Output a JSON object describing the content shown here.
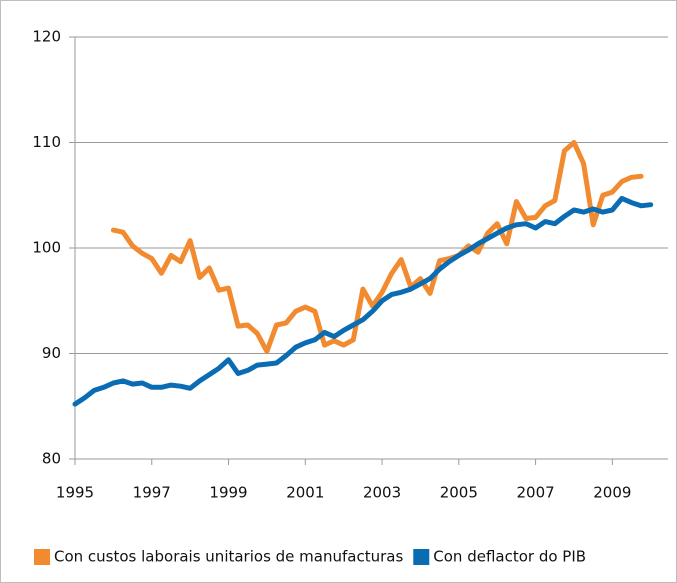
{
  "chart_data": {
    "type": "line",
    "x": [
      1995,
      1995.25,
      1995.5,
      1995.75,
      1996,
      1996.25,
      1996.5,
      1996.75,
      1997,
      1997.25,
      1997.5,
      1997.75,
      1998,
      1998.25,
      1998.5,
      1998.75,
      1999,
      1999.25,
      1999.5,
      1999.75,
      2000,
      2000.25,
      2000.5,
      2000.75,
      2001,
      2001.25,
      2001.5,
      2001.75,
      2002,
      2002.25,
      2002.5,
      2002.75,
      2003,
      2003.25,
      2003.5,
      2003.75,
      2004,
      2004.25,
      2004.5,
      2004.75,
      2005,
      2005.25,
      2005.5,
      2005.75,
      2006,
      2006.25,
      2006.5,
      2006.75,
      2007,
      2007.25,
      2007.5,
      2007.75,
      2008,
      2008.25,
      2008.5,
      2008.75,
      2009,
      2009.25,
      2009.5,
      2009.75,
      2010
    ],
    "series": [
      {
        "name": "Con custos laborais unitarios de manufacturas",
        "color": "#f28a2f",
        "values": [
          null,
          null,
          null,
          null,
          101.7,
          101.5,
          100.2,
          99.5,
          99.0,
          97.6,
          99.3,
          98.7,
          100.7,
          97.2,
          98.1,
          96.0,
          96.2,
          92.6,
          92.7,
          91.9,
          90.2,
          92.7,
          92.9,
          94.0,
          94.4,
          94.0,
          90.8,
          91.2,
          90.8,
          91.3,
          96.1,
          94.5,
          95.8,
          97.6,
          98.9,
          96.3,
          97.1,
          95.7,
          98.8,
          99.0,
          99.3,
          100.2,
          99.6,
          101.4,
          102.3,
          100.4,
          104.4,
          102.8,
          102.9,
          104.0,
          104.5,
          109.2,
          110.0,
          108.0,
          102.2,
          105.0,
          105.3,
          106.3,
          106.7,
          106.8,
          null
        ]
      },
      {
        "name": "Con deflactor do PIB",
        "color": "#0a6db3",
        "values": [
          85.2,
          85.8,
          86.5,
          86.8,
          87.2,
          87.4,
          87.1,
          87.2,
          86.8,
          86.8,
          87.0,
          86.9,
          86.7,
          87.4,
          88.0,
          88.6,
          89.4,
          88.1,
          88.4,
          88.9,
          89.0,
          89.1,
          89.8,
          90.6,
          91.0,
          91.3,
          92.0,
          91.6,
          92.2,
          92.7,
          93.2,
          94.0,
          95.0,
          95.6,
          95.8,
          96.1,
          96.6,
          97.1,
          98.0,
          98.7,
          99.3,
          99.8,
          100.4,
          100.9,
          101.4,
          101.9,
          102.2,
          102.3,
          101.9,
          102.5,
          102.3,
          103.0,
          103.6,
          103.4,
          103.7,
          103.4,
          103.6,
          104.7,
          104.3,
          104.0,
          104.1
        ]
      }
    ],
    "xlim": [
      1995,
      2010.45
    ],
    "xticks": [
      1995,
      1997,
      1999,
      2001,
      2003,
      2005,
      2007,
      2009
    ],
    "ylim": [
      80,
      120
    ],
    "yticks": [
      80,
      90,
      100,
      110,
      120
    ],
    "grid": true,
    "legend": "bottom"
  }
}
